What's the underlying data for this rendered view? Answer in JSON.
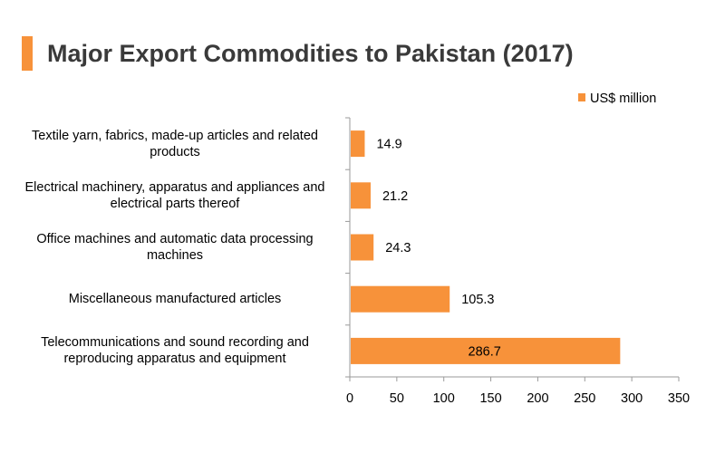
{
  "title": "Major Export Commodities to Pakistan (2017)",
  "colors": {
    "bar": "#f7923a",
    "axis": "#9a9a9a"
  },
  "chart_data": {
    "type": "bar",
    "orientation": "horizontal",
    "categories": [
      "Textile yarn, fabrics, made-up articles and related products",
      "Electrical machinery, apparatus and appliances and electrical parts thereof",
      "Office machines and automatic data processing machines",
      "Miscellaneous manufactured articles",
      "Telecommunications and sound recording and reproducing apparatus and equipment"
    ],
    "series": [
      {
        "name": "US$ million",
        "values": [
          14.9,
          21.2,
          24.3,
          105.3,
          286.7
        ]
      }
    ],
    "value_labels": [
      "14.9",
      "21.2",
      "24.3",
      "105.3",
      "286.7"
    ],
    "xlim": [
      0,
      350
    ],
    "xticks": [
      0,
      50,
      100,
      150,
      200,
      250,
      300,
      350
    ],
    "grid": false,
    "legend_position": "top-right"
  }
}
